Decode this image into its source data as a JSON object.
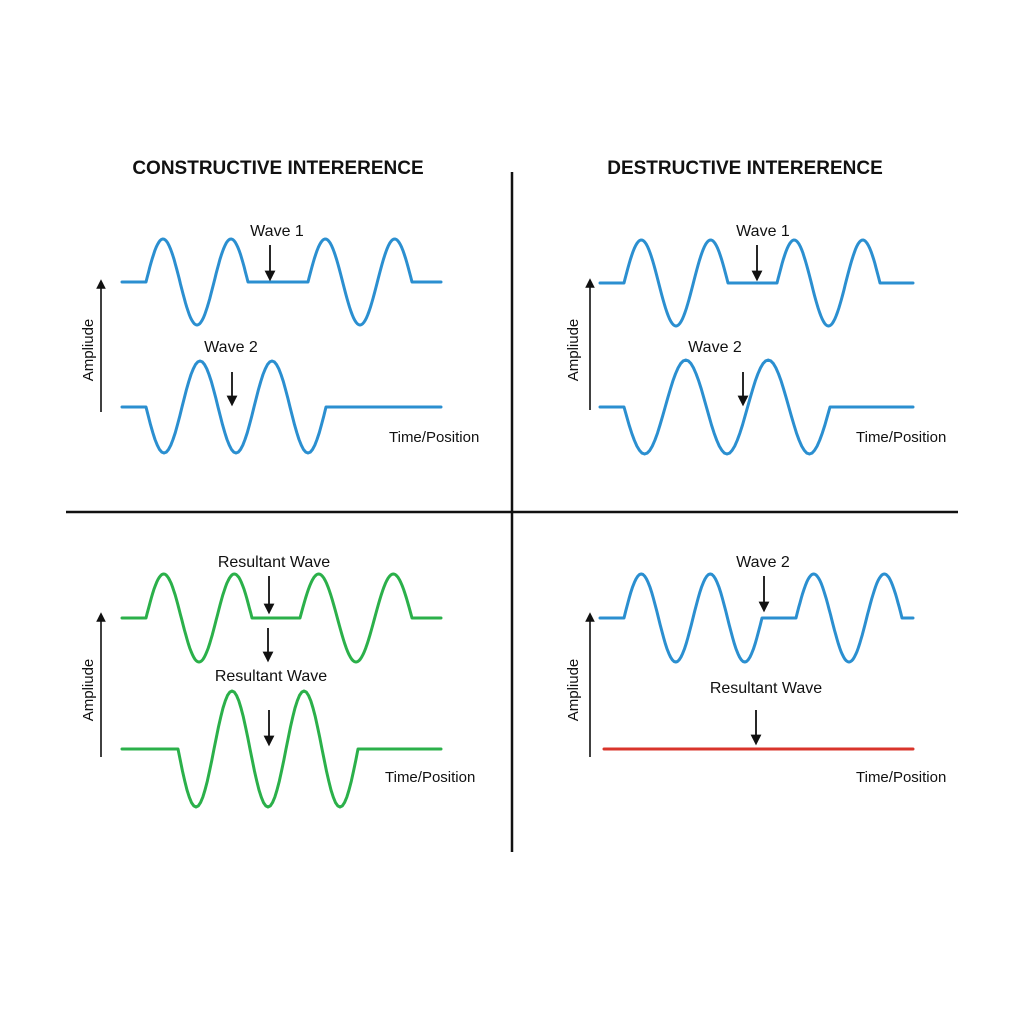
{
  "colors": {
    "wave_blue": "#2b8fd0",
    "wave_green": "#2bb04a",
    "wave_red": "#d9342b",
    "ink": "#111111"
  },
  "panels": {
    "top_left": {
      "title": "CONSTRUCTIVE INTERERENCE",
      "axis_label": "Ampliude",
      "x_label": "Time/Position",
      "wave_top_label": "Wave 1",
      "wave_bottom_label": "Wave 2"
    },
    "top_right": {
      "title": "DESTRUCTIVE INTERERENCE",
      "axis_label": "Ampliude",
      "x_label": "Time/Position",
      "wave_top_label": "Wave 1",
      "wave_bottom_label": "Wave 2"
    },
    "bottom_left": {
      "axis_label": "Ampliude",
      "x_label": "Time/Position",
      "wave_top_label": "Resultant Wave",
      "wave_bottom_label": "Resultant Wave"
    },
    "bottom_right": {
      "axis_label": "Ampliude",
      "x_label": "Time/Position",
      "wave_top_label": "Wave 2",
      "wave_bottom_label": "Resultant Wave"
    }
  }
}
